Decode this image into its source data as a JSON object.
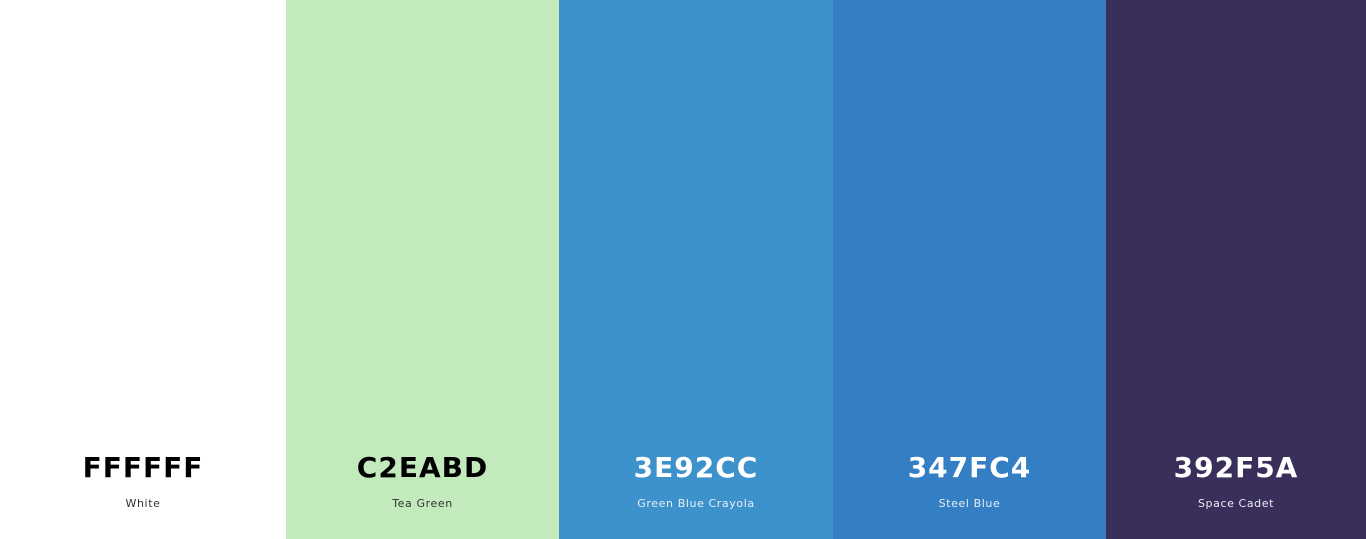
{
  "swatches": [
    {
      "hex": "FFFFFF",
      "name": "White",
      "color": "#FFFFFF"
    },
    {
      "hex": "C2EABD",
      "name": "Tea Green",
      "color": "#C2EABD"
    },
    {
      "hex": "3E92CC",
      "name": "Green Blue Crayola",
      "color": "#3E92CC"
    },
    {
      "hex": "347FC4",
      "name": "Steel Blue",
      "color": "#347FC4"
    },
    {
      "hex": "392F5A",
      "name": "Space Cadet",
      "color": "#392F5A"
    }
  ]
}
